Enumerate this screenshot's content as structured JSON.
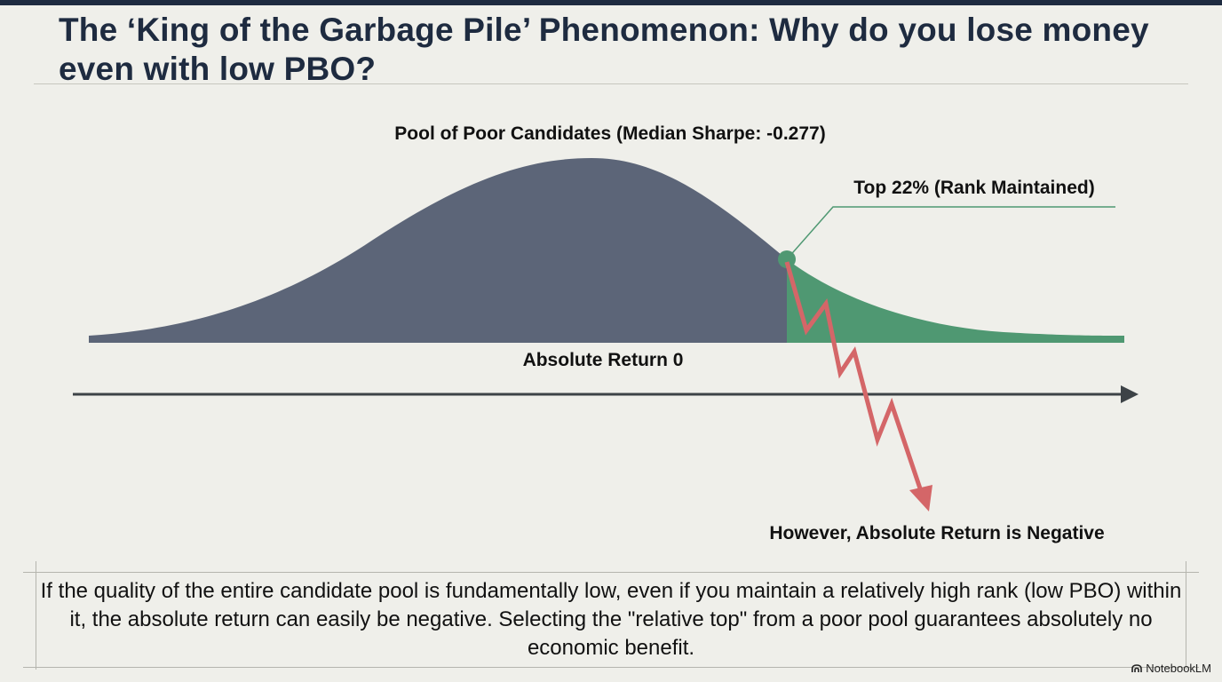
{
  "title": "The ‘King of the Garbage Pile’ Phenomenon: Why do you lose money even with low PBO?",
  "diagram": {
    "pool_label": "Pool of Poor Candidates (Median Sharpe: -0.277)",
    "top_label": "Top 22% (Rank Maintained)",
    "zero_label": "Absolute Return 0",
    "negative_label": "However, Absolute Return is Negative",
    "top_share_percent": 22,
    "colors": {
      "pool": "#5c6578",
      "top": "#4f9872",
      "axis": "#3d4347",
      "drop_arrow": "#d46668"
    }
  },
  "footer": {
    "text": "If the quality of the entire candidate pool is fundamentally low, even if you maintain a relatively high rank (low PBO) within it, the absolute return can easily be negative. Selecting the \"relative top\" from a poor pool guarantees absolutely no economic benefit."
  },
  "brand": {
    "name": "NotebookLM",
    "icon": "notebooklm-logo-icon"
  }
}
